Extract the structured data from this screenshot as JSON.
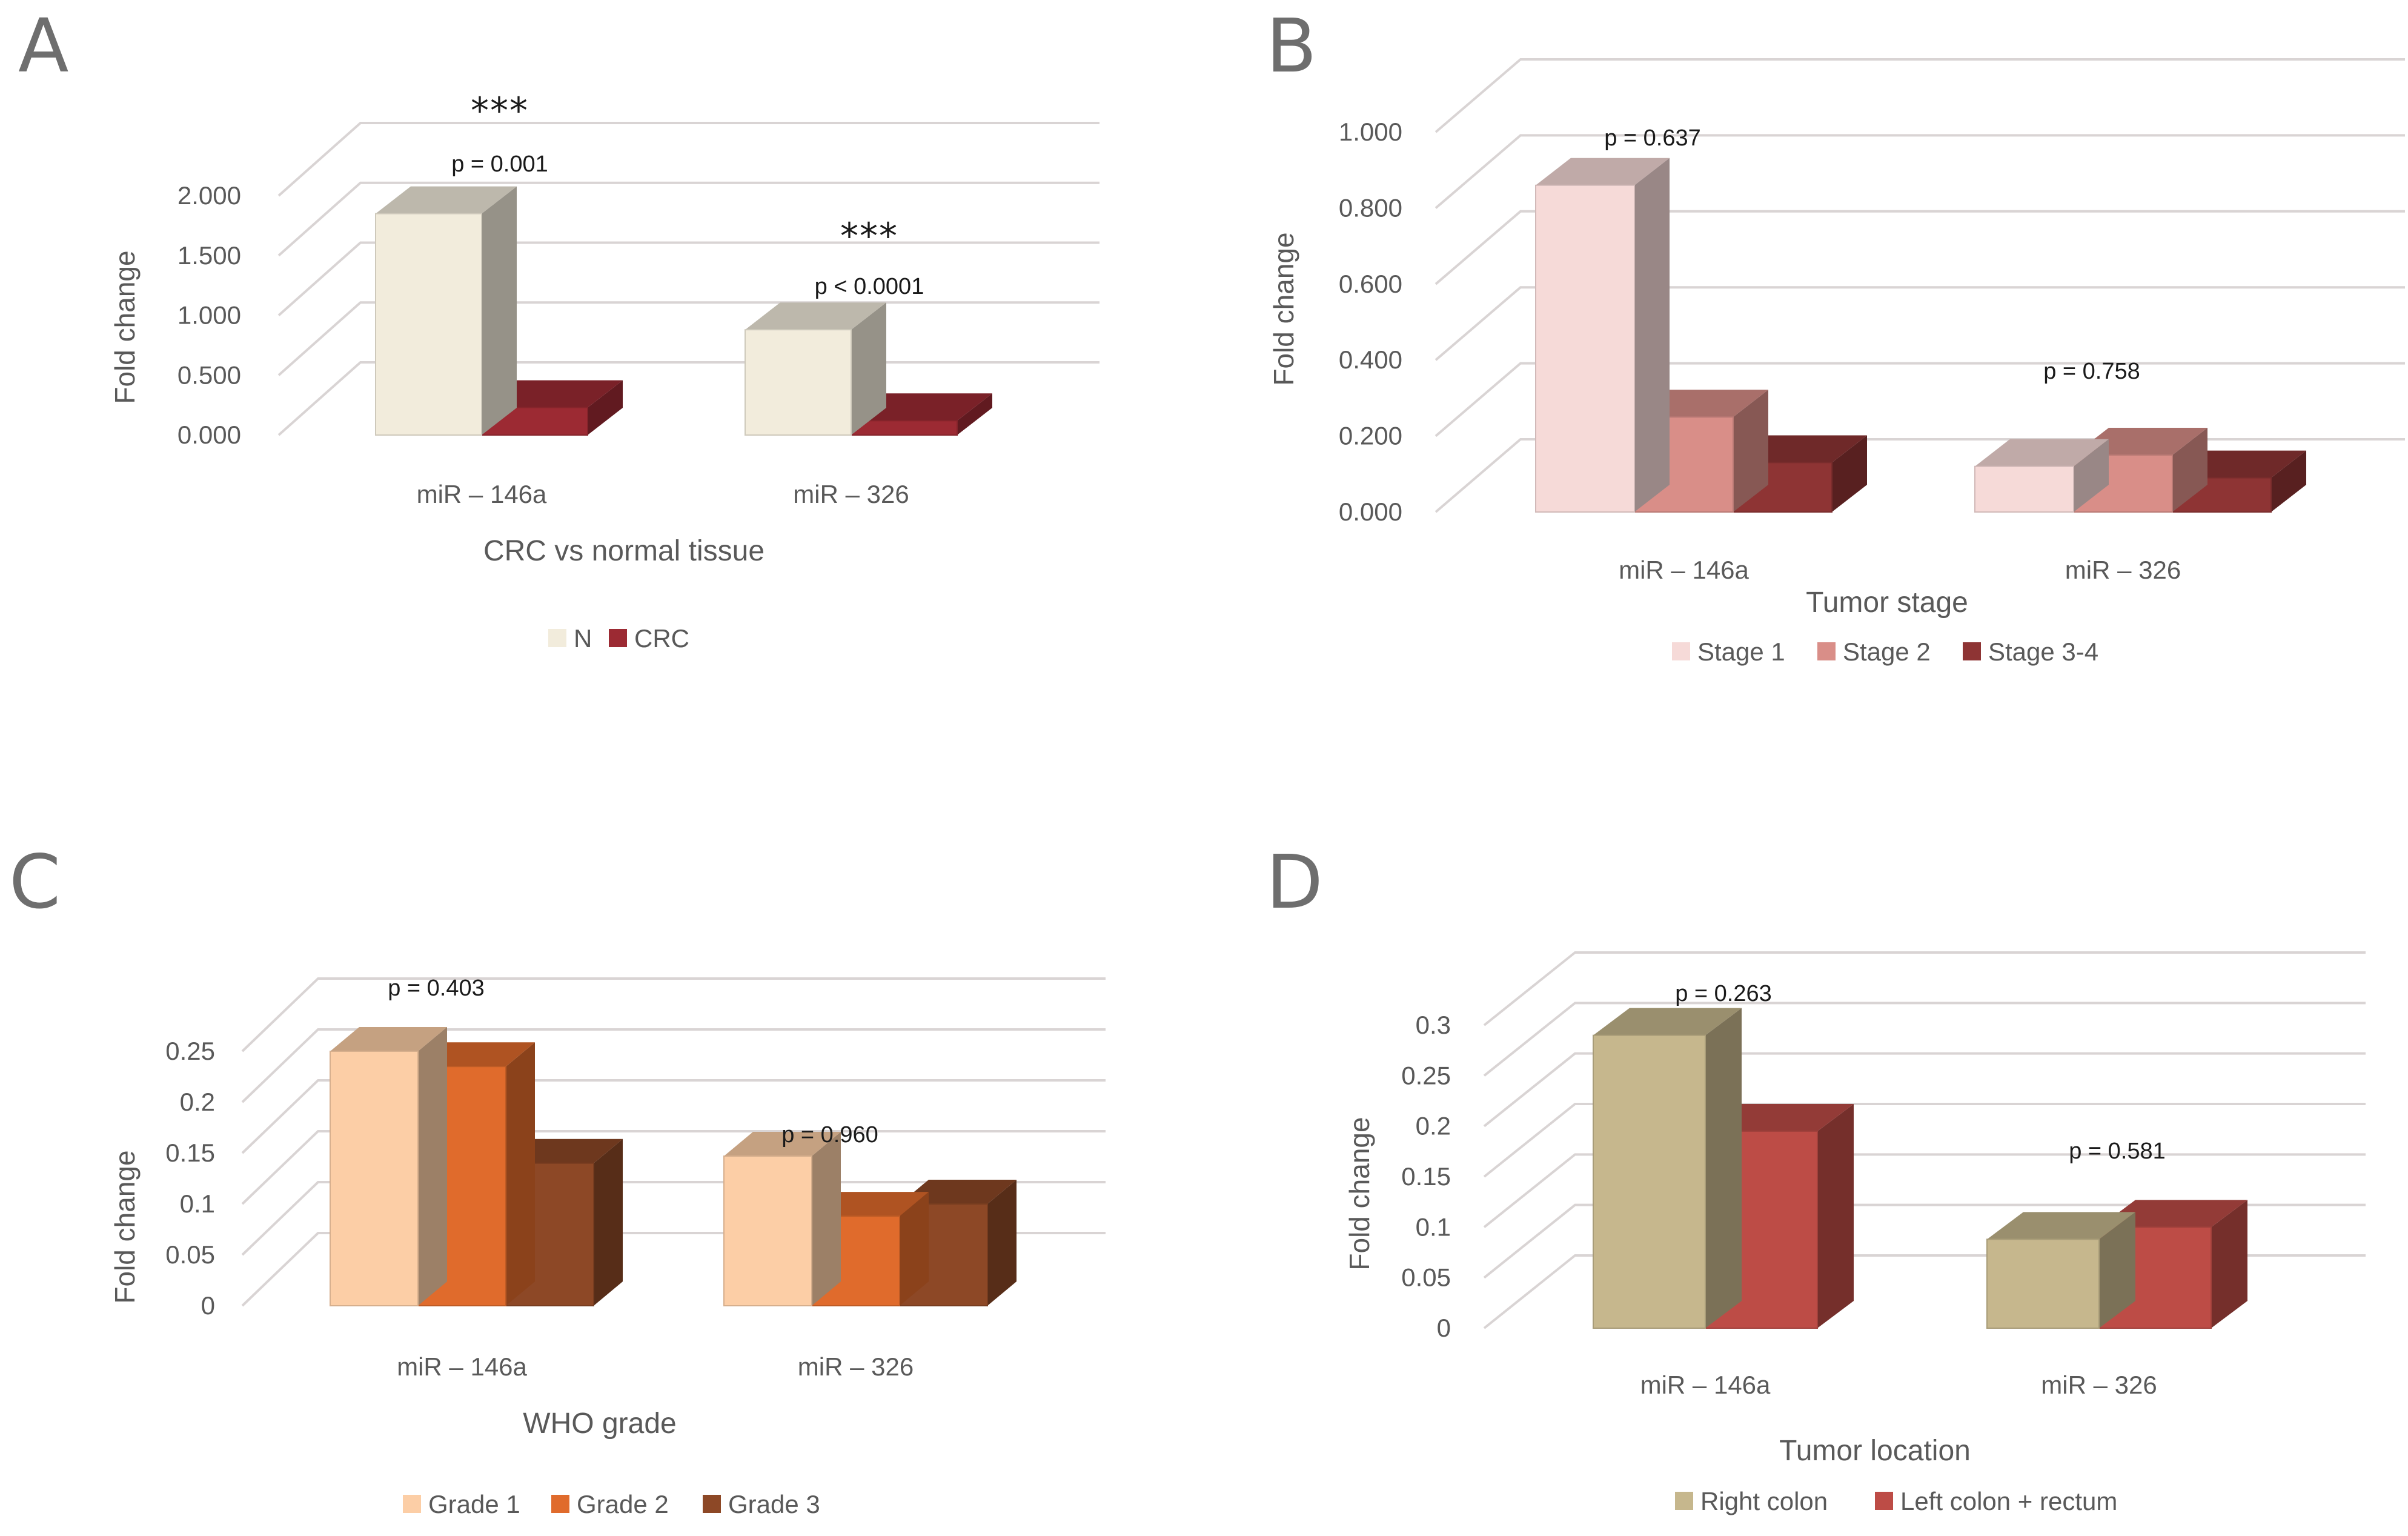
{
  "chart_data": [
    {
      "panel": "A",
      "type": "bar",
      "categories": [
        "miR – 146a",
        "miR – 326"
      ],
      "series": [
        {
          "name": "N",
          "values": [
            1.85,
            0.88
          ],
          "color": "#f2ecdc"
        },
        {
          "name": "CRC",
          "values": [
            0.23,
            0.12
          ],
          "color": "#9c2a33"
        }
      ],
      "ylabel": "Fold change",
      "xlabel": "CRC vs normal tissue",
      "yticks": [
        "0.000",
        "0.500",
        "1.000",
        "1.500",
        "2.000"
      ],
      "ylim": [
        0,
        2
      ],
      "annotations": [
        {
          "category": 0,
          "text": "p = 0.001",
          "stars": "***"
        },
        {
          "category": 1,
          "text": "p < 0.0001",
          "stars": "***"
        }
      ]
    },
    {
      "panel": "B",
      "type": "bar",
      "categories": [
        "miR – 146a",
        "miR – 326"
      ],
      "series": [
        {
          "name": "Stage 1",
          "values": [
            0.86,
            0.12
          ],
          "color": "#f6dad8"
        },
        {
          "name": "Stage 2",
          "values": [
            0.25,
            0.15
          ],
          "color": "#d98e88"
        },
        {
          "name": "Stage 3-4",
          "values": [
            0.13,
            0.09
          ],
          "color": "#8e3434"
        }
      ],
      "ylabel": "Fold change",
      "xlabel": "Tumor stage",
      "yticks": [
        "0.000",
        "0.200",
        "0.400",
        "0.600",
        "0.800",
        "1.000"
      ],
      "ylim": [
        0,
        1
      ],
      "annotations": [
        {
          "category": 0,
          "text": "p = 0.637",
          "stars": ""
        },
        {
          "category": 1,
          "text": "p = 0.758",
          "stars": ""
        }
      ]
    },
    {
      "panel": "C",
      "type": "bar",
      "categories": [
        "miR – 146a",
        "miR – 326"
      ],
      "series": [
        {
          "name": "Grade 1",
          "values": [
            0.25,
            0.147
          ],
          "color": "#fccea6"
        },
        {
          "name": "Grade 2",
          "values": [
            0.235,
            0.088
          ],
          "color": "#e06b2c"
        },
        {
          "name": "Grade 3",
          "values": [
            0.14,
            0.1
          ],
          "color": "#8d4826"
        }
      ],
      "ylabel": "Fold change",
      "xlabel": "WHO grade",
      "yticks": [
        "0",
        "0.05",
        "0.1",
        "0.15",
        "0.2",
        "0.25"
      ],
      "ylim": [
        0,
        0.25
      ],
      "annotations": [
        {
          "category": 0,
          "text": "p = 0.403",
          "stars": ""
        },
        {
          "category": 1,
          "text": "p = 0.960",
          "stars": ""
        }
      ]
    },
    {
      "panel": "D",
      "type": "bar",
      "categories": [
        "miR – 146a",
        "miR – 326"
      ],
      "series": [
        {
          "name": "Right colon",
          "values": [
            0.29,
            0.088
          ],
          "color": "#c6b78d"
        },
        {
          "name": "Left colon + rectum",
          "values": [
            0.195,
            0.1
          ],
          "color": "#bd4c46"
        }
      ],
      "ylabel": "Fold change",
      "xlabel": "Tumor location",
      "yticks": [
        "0",
        "0.05",
        "0.1",
        "0.15",
        "0.2",
        "0.25",
        "0.3"
      ],
      "ylim": [
        0,
        0.3
      ],
      "annotations": [
        {
          "category": 0,
          "text": "p = 0.263",
          "stars": ""
        },
        {
          "category": 1,
          "text": "p = 0.581",
          "stars": ""
        }
      ]
    }
  ]
}
